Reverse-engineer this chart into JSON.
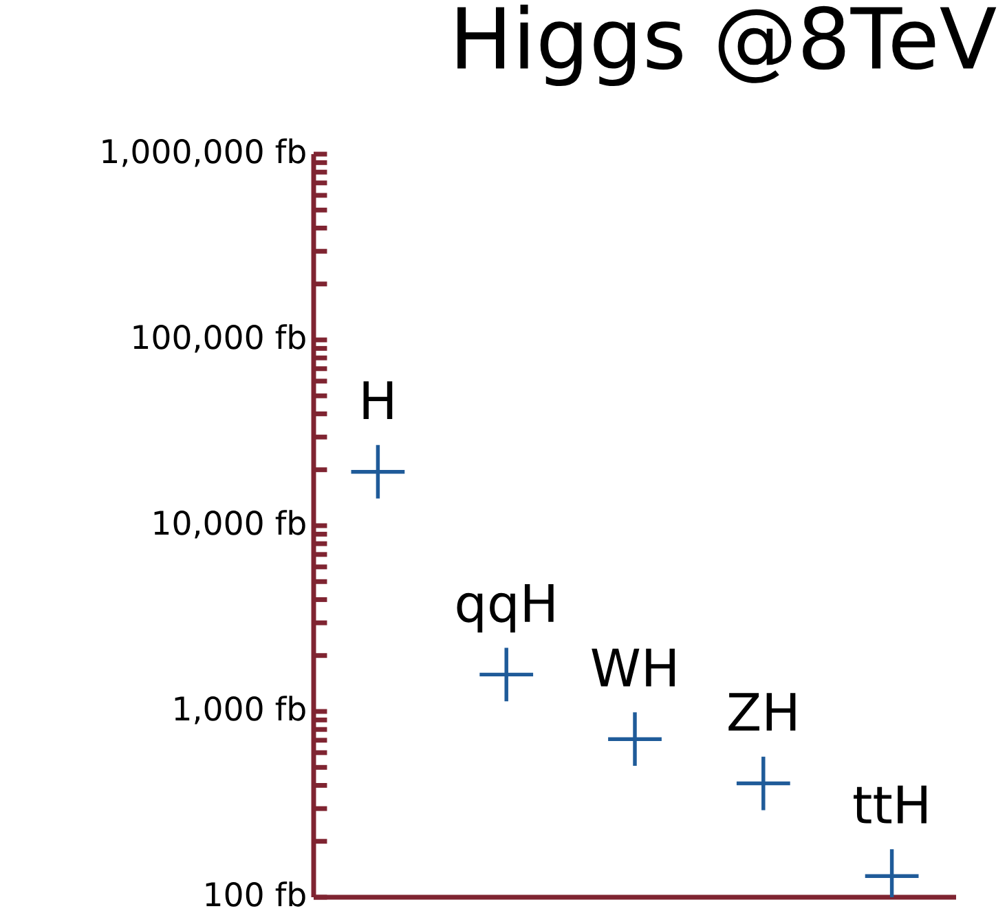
{
  "chart_data": {
    "type": "scatter",
    "title": "Higgs @8TeV",
    "categories": [
      null,
      null,
      null,
      null,
      null
    ],
    "series": [
      {
        "name": "H",
        "color": "#1f5b99",
        "values": [
          19500,
          null,
          null,
          null,
          null
        ]
      },
      {
        "name": "qqH",
        "color": "#1f5b99",
        "values": [
          null,
          1580,
          null,
          null,
          null
        ]
      },
      {
        "name": "WH",
        "color": "#1f5b99",
        "values": [
          null,
          null,
          710,
          null,
          null
        ]
      },
      {
        "name": "ZH",
        "color": "#1f5b99",
        "values": [
          null,
          null,
          null,
          410,
          null
        ]
      },
      {
        "name": "ttH",
        "color": "#1f5b99",
        "values": [
          null,
          null,
          null,
          null,
          130
        ]
      }
    ],
    "log": "y",
    "ylim": [
      100,
      1000000
    ],
    "yticks": [
      {
        "value": 100,
        "label": "100 fb"
      },
      {
        "value": 1000,
        "label": "1,000 fb"
      },
      {
        "value": 10000,
        "label": "10,000 fb"
      },
      {
        "value": 100000,
        "label": "100,000 fb"
      },
      {
        "value": 1000000,
        "label": "1,000,000 fb"
      }
    ],
    "marker": "cross",
    "grid": false,
    "legend": false,
    "tick_labels": "y"
  }
}
